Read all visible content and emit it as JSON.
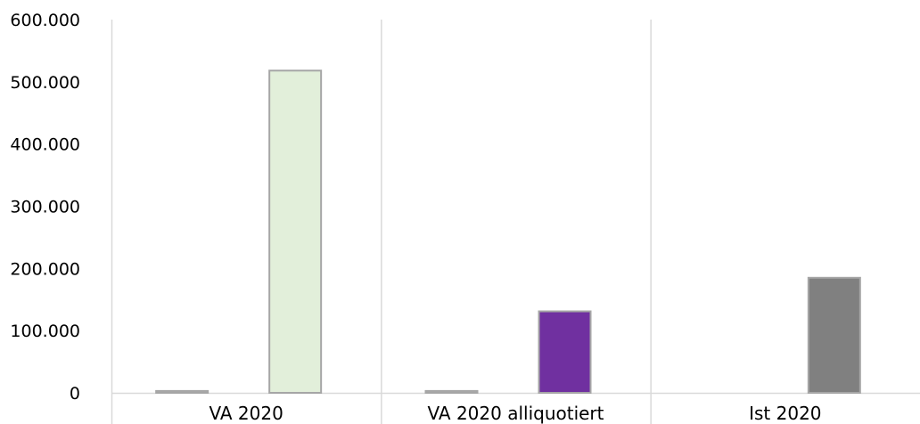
{
  "chart_data": {
    "type": "bar",
    "title": "",
    "xlabel": "",
    "ylabel": "",
    "categories": [
      "VA 2020",
      "VA 2020 alliquotiert",
      "Ist 2020"
    ],
    "series": [
      {
        "values": [
          3000,
          3000,
          0
        ],
        "colors": [
          "#b3b3b3",
          "#b3b3b3",
          "#b3b3b3"
        ]
      },
      {
        "values": [
          518000,
          131000,
          185000
        ],
        "colors": [
          "#e2efda",
          "#7030a0",
          "#808080"
        ]
      }
    ],
    "ylim": [
      0,
      600000
    ],
    "yticks": [
      0,
      100000,
      200000,
      300000,
      400000,
      500000,
      600000
    ],
    "ytick_labels": [
      "0",
      "100.000",
      "200.000",
      "300.000",
      "400.000",
      "500.000",
      "600.000"
    ],
    "grid": false,
    "legend": "none",
    "bar_edge_color": "#a6a6a6",
    "axis_color": "#d9d9d9"
  }
}
